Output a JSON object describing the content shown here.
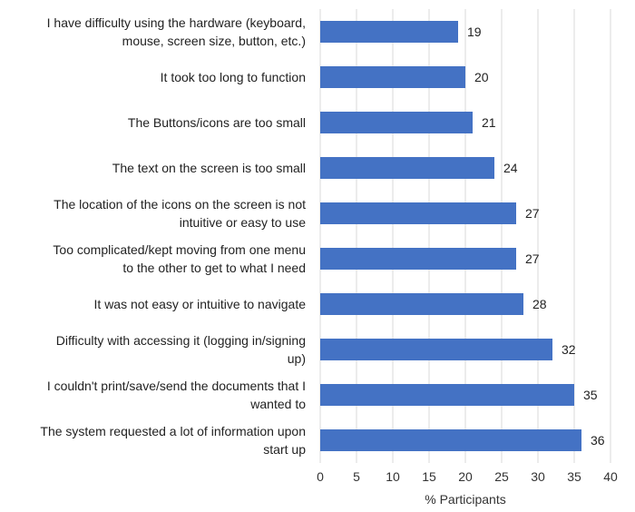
{
  "chart_data": {
    "type": "bar",
    "orientation": "horizontal",
    "categories": [
      [
        "I have difficulty using the hardware (keyboard,",
        "mouse, screen size, button, etc.)"
      ],
      [
        "It took too long to function"
      ],
      [
        "The Buttons/icons are too small"
      ],
      [
        "The text on the screen is too small"
      ],
      [
        "The location of the icons on the screen is not",
        "intuitive or easy to use"
      ],
      [
        "Too complicated/kept moving from one menu",
        "to the other to get to what I need"
      ],
      [
        "It was not easy or intuitive to navigate"
      ],
      [
        "Difficulty with accessing it (logging in/signing",
        "up)"
      ],
      [
        "I couldn't print/save/send the documents that I",
        "wanted to"
      ],
      [
        "The system requested a lot of information upon",
        "start up"
      ]
    ],
    "values": [
      19,
      20,
      21,
      24,
      27,
      27,
      28,
      32,
      35,
      36
    ],
    "data_labels": [
      "19",
      "20",
      "21",
      "24",
      "27",
      "27",
      "28",
      "32",
      "35",
      "36"
    ],
    "xlabel": "% Participants",
    "ylabel": "",
    "title": "",
    "xlim": [
      0,
      40
    ],
    "xticks": [
      "0",
      "5",
      "10",
      "15",
      "20",
      "25",
      "30",
      "35",
      "40"
    ],
    "grid": true,
    "bar_color": "#4472C4",
    "grid_color": "#d9d9d9"
  }
}
